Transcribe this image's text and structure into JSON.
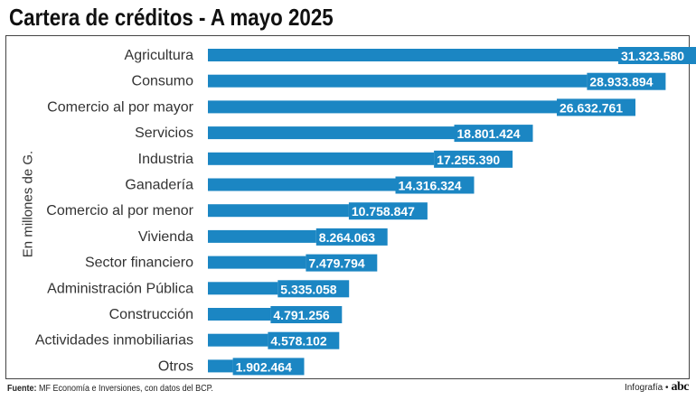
{
  "header": {
    "title": "Cartera de créditos - A mayo 2025"
  },
  "chart_data": {
    "type": "bar",
    "orientation": "horizontal",
    "title": "Cartera de créditos - A mayo 2025",
    "ylabel": "En millones de G.",
    "xlabel": "",
    "categories": [
      "Agricultura",
      "Consumo",
      "Comercio al por mayor",
      "Servicios",
      "Industria",
      "Ganadería",
      "Comercio al por menor",
      "Vivienda",
      "Sector financiero",
      "Administración Pública",
      "Construcción",
      "Actividades inmobiliarias",
      "Otros"
    ],
    "values": [
      31323580,
      28933894,
      26632761,
      18801424,
      17255390,
      14316324,
      10758847,
      8264063,
      7479794,
      5335058,
      4791256,
      4578102,
      1902464
    ],
    "value_labels": [
      "31.323.580",
      "28.933.894",
      "26.632.761",
      "18.801.424",
      "17.255.390",
      "14.316.324",
      "10.758.847",
      "8.264.063",
      "7.479.794",
      "5.335.058",
      "4.791.256",
      "4.578.102",
      "1.902.464"
    ],
    "xlim": [
      0,
      31323580
    ],
    "grid": false,
    "legend": "none",
    "bar_color": "#1b86c3",
    "label_color": "#ffffff"
  },
  "footer": {
    "source_label": "Fuente:",
    "source_text": " MF Economía e Inversiones, con datos del BCP.",
    "credit_text": "Infografía •",
    "logo_text": "abc"
  }
}
